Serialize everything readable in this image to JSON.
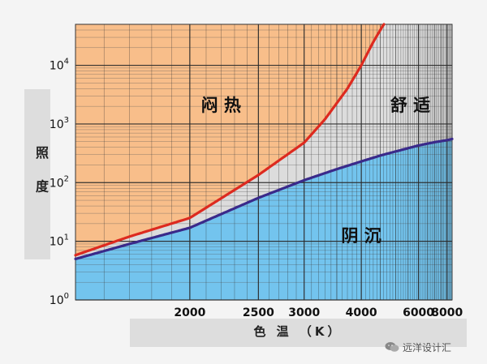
{
  "chart_data": {
    "type": "area",
    "xlabel": "色 温 （K）",
    "ylabel": "照 度",
    "x_scale": "reciprocal",
    "y_scale": "log",
    "xlim": [
      1500,
      8500
    ],
    "ylim": [
      1,
      50000
    ],
    "x_ticks": [
      {
        "value": 2000,
        "label": "2000"
      },
      {
        "value": 2500,
        "label": "2500"
      },
      {
        "value": 3000,
        "label": "3000"
      },
      {
        "value": 4000,
        "label": "4000"
      },
      {
        "value": 6000,
        "label": "6000"
      },
      {
        "value": 8000,
        "label": "8000"
      }
    ],
    "y_ticks": [
      {
        "value": 1,
        "base": "10",
        "exp": "0"
      },
      {
        "value": 10,
        "base": "10",
        "exp": "1"
      },
      {
        "value": 100,
        "base": "10",
        "exp": "2"
      },
      {
        "value": 1000,
        "base": "10",
        "exp": "3"
      },
      {
        "value": 10000,
        "base": "10",
        "exp": "4"
      }
    ],
    "grid": true,
    "series": [
      {
        "color": "#dd2a1f",
        "x": [
          1500,
          1700,
          2000,
          2500,
          3000,
          3300,
          3700,
          4000,
          4300,
          4600
        ],
        "y": [
          5.8,
          12,
          25,
          135,
          480,
          1200,
          4000,
          10000,
          25000,
          50000
        ]
      },
      {
        "color": "#3a2a8a",
        "x": [
          1500,
          1700,
          2000,
          2500,
          3000,
          3500,
          4000,
          4500,
          5000,
          6000,
          7000,
          8000,
          8500
        ],
        "y": [
          5,
          9,
          17,
          55,
          110,
          170,
          230,
          290,
          340,
          430,
          490,
          530,
          555
        ]
      }
    ],
    "region_colors": {
      "hot": "#f8be8a",
      "comfort": "#dcdcdc",
      "dim": "#73c4ee"
    },
    "annotations": [
      {
        "text": "闷 热",
        "x": 2200,
        "y": 2000
      },
      {
        "text": "舒 适",
        "x": 5600,
        "y": 2000
      },
      {
        "text": "阴 沉",
        "x": 4000,
        "y": 12
      }
    ]
  },
  "watermark": "远洋设计汇",
  "watermark_icon": "wechat-icon"
}
